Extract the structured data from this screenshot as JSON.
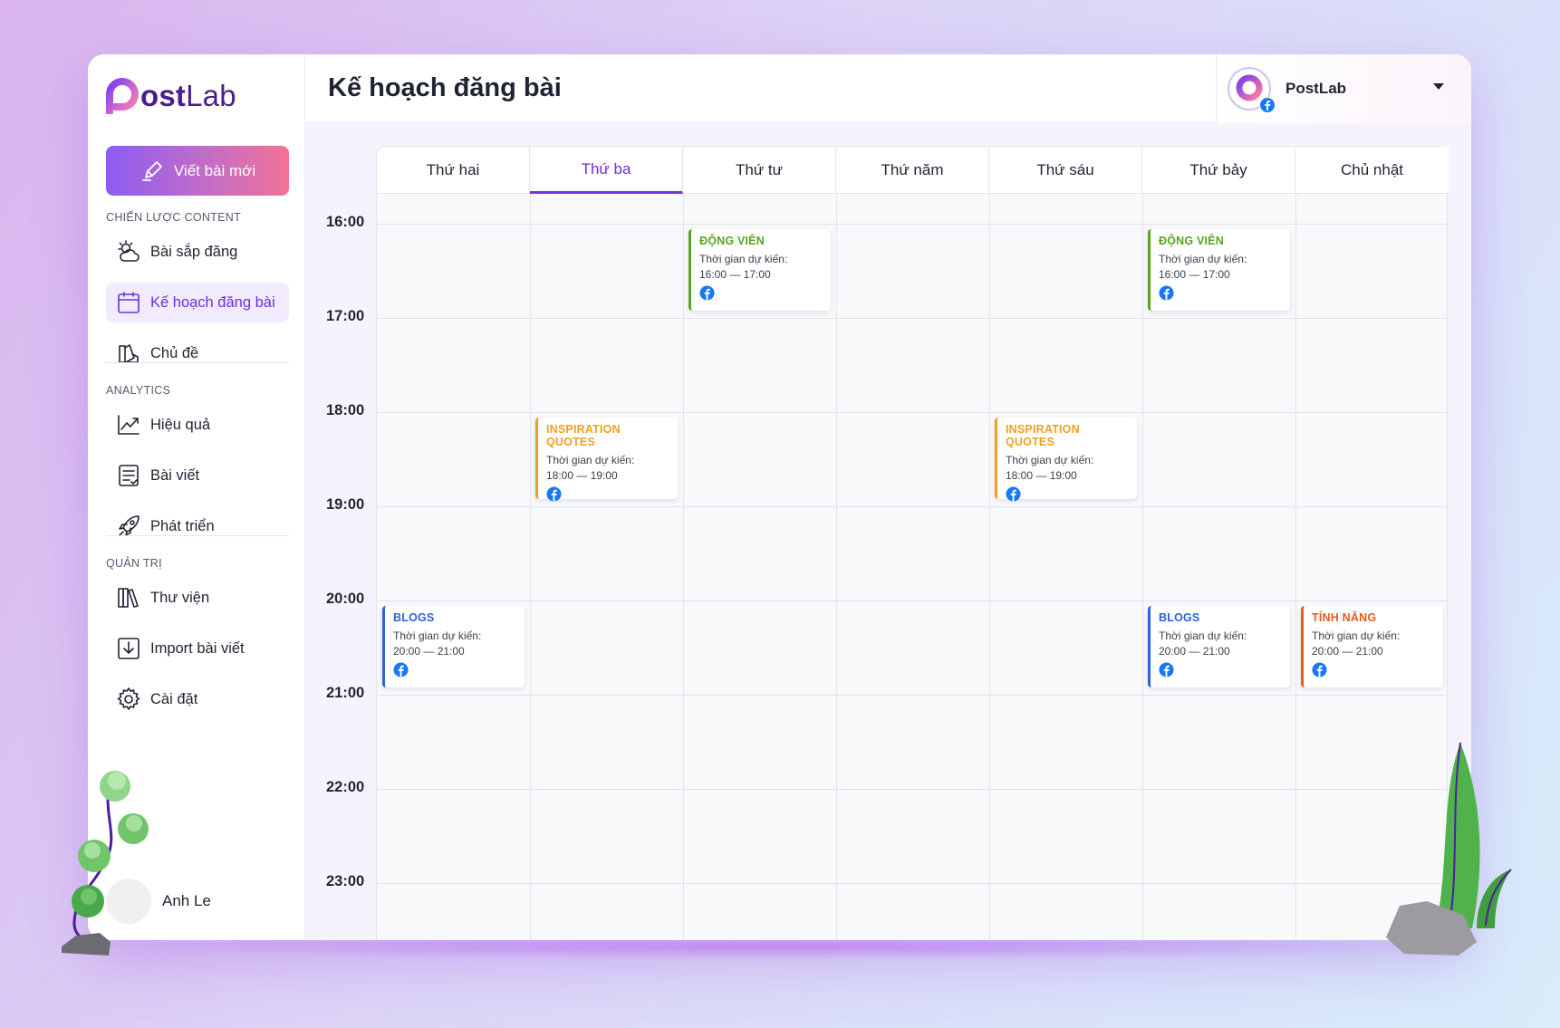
{
  "app": {
    "logo_text_bold": "ost",
    "logo_text_light": "Lab",
    "new_post_label": "Viết bài mới"
  },
  "sidebar": {
    "sections": [
      {
        "label": "CHIẾN LƯỢC CONTENT",
        "items": [
          {
            "label": "Bài sắp đăng",
            "icon": "sun-cloud-icon",
            "active": false
          },
          {
            "label": "Kế hoạch đăng bài",
            "icon": "calendar-icon",
            "active": true
          },
          {
            "label": "Chủ đề",
            "icon": "swatch-book-icon",
            "active": false
          }
        ]
      },
      {
        "label": "ANALYTICS",
        "items": [
          {
            "label": "Hiệu quả",
            "icon": "trend-chart-icon",
            "active": false
          },
          {
            "label": "Bài viết",
            "icon": "document-icon",
            "active": false
          },
          {
            "label": "Phát triển",
            "icon": "rocket-icon",
            "active": false
          }
        ]
      },
      {
        "label": "QUẢN TRỊ",
        "items": [
          {
            "label": "Thư viện",
            "icon": "library-books-icon",
            "active": false
          },
          {
            "label": "Import bài viết",
            "icon": "import-icon",
            "active": false
          },
          {
            "label": "Cài đặt",
            "icon": "gear-icon",
            "active": false
          }
        ]
      }
    ],
    "user_name": "Anh Le"
  },
  "header": {
    "title": "Kế hoạch đăng bài",
    "account_name": "PostLab"
  },
  "calendar": {
    "days": [
      "Thứ hai",
      "Thứ ba",
      "Thứ tư",
      "Thứ năm",
      "Thứ sáu",
      "Thứ bảy",
      "Chủ nhật"
    ],
    "active_day_index": 1,
    "hours": [
      "16:00",
      "17:00",
      "18:00",
      "19:00",
      "20:00",
      "21:00",
      "22:00",
      "23:00"
    ],
    "events": [
      {
        "day": 2,
        "start_hour": 0,
        "title": "ĐỘNG VIÊN",
        "color": "#5aa31f",
        "time_label": "Thời gian dự kiến:",
        "time": "16:00 — 17:00"
      },
      {
        "day": 5,
        "start_hour": 0,
        "title": "ĐỘNG VIÊN",
        "color": "#5aa31f",
        "time_label": "Thời gian dự kiến:",
        "time": "16:00 — 17:00"
      },
      {
        "day": 1,
        "start_hour": 2,
        "title": "INSPIRATION QUOTES",
        "color": "#f0a020",
        "time_label": "Thời gian dự kiến:",
        "time": "18:00 — 19:00"
      },
      {
        "day": 4,
        "start_hour": 2,
        "title": "INSPIRATION QUOTES",
        "color": "#f0a020",
        "time_label": "Thời gian dự kiến:",
        "time": "18:00 — 19:00"
      },
      {
        "day": 0,
        "start_hour": 4,
        "title": "BLOGS",
        "color": "#2e62d6",
        "time_label": "Thời gian dự kiến:",
        "time": "20:00 — 21:00"
      },
      {
        "day": 5,
        "start_hour": 4,
        "title": "BLOGS",
        "color": "#2e62d6",
        "time_label": "Thời gian dự kiến:",
        "time": "20:00 — 21:00"
      },
      {
        "day": 6,
        "start_hour": 4,
        "title": "TÍNH NĂNG",
        "color": "#ea5a1c",
        "time_label": "Thời gian dự kiến:",
        "time": "20:00 — 21:00"
      }
    ]
  },
  "colors": {
    "accent": "#6d2fe0",
    "facebook": "#1877f2"
  }
}
